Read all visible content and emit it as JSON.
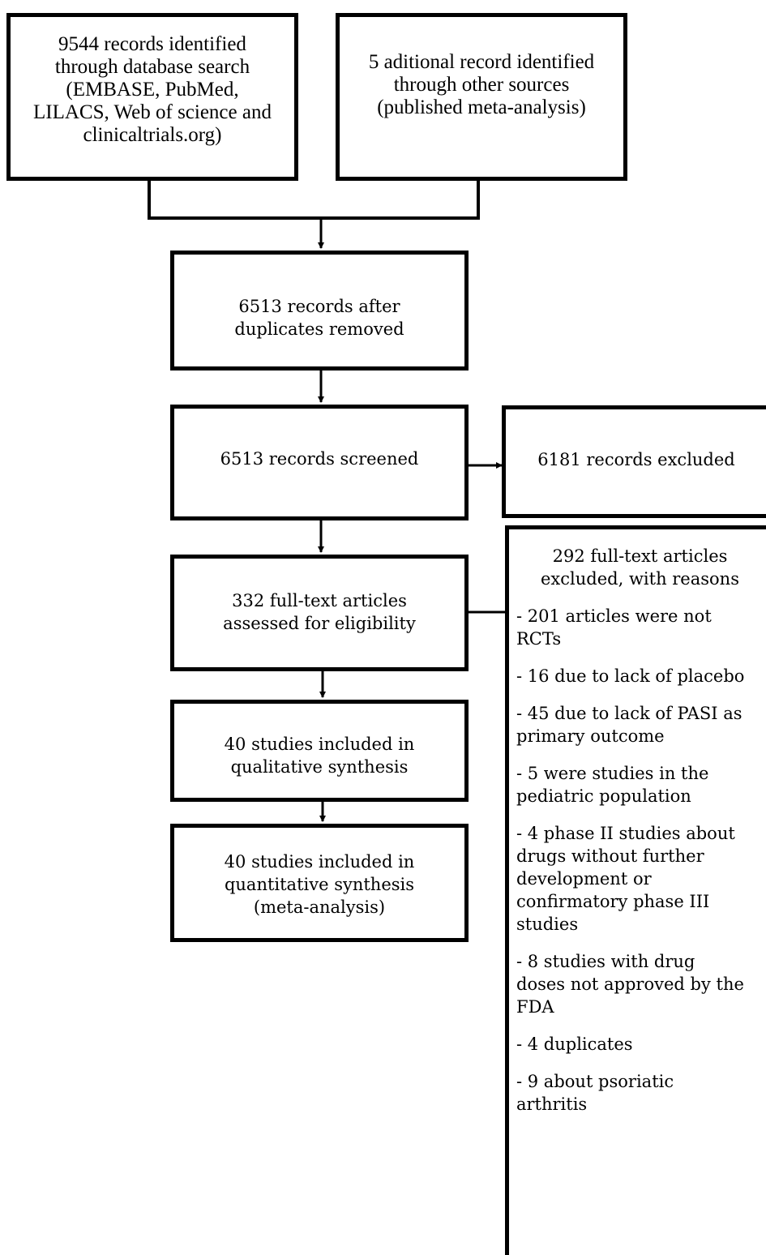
{
  "boxes": {
    "db_search": "9544 records identified\nthrough database search\n(EMBASE, PubMed,\nLILACS, Web of science and\nclinicaltrials.org)",
    "other_sources": "5 aditional record identified\nthrough other sources\n(published meta-analysis)",
    "after_duplicates": "6513 records after\nduplicates removed",
    "screened": "6513 records screened",
    "excluded": "6181 records excluded",
    "full_text": "332 full-text articles\nassessed for eligibility",
    "qualitative": "40 studies included in\nqualitative synthesis",
    "quantitative": "40 studies included in\nquantitative synthesis\n(meta-analysis)"
  },
  "exclusions": {
    "title": "292 full-text articles\nexcluded, with reasons",
    "reasons": [
      "- 201 articles were not\nRCTs",
      "- 16 due to lack of placebo",
      "- 45 due to lack of PASI as\nprimary outcome",
      "- 5 were studies in the\npediatric population",
      "- 4 phase II studies about\ndrugs without further\ndevelopment or\nconfirmatory phase III\nstudies",
      "- 8 studies with drug\ndoses not approved by the\nFDA",
      "- 4 duplicates",
      "- 9 about psoriatic\narthritis"
    ]
  }
}
